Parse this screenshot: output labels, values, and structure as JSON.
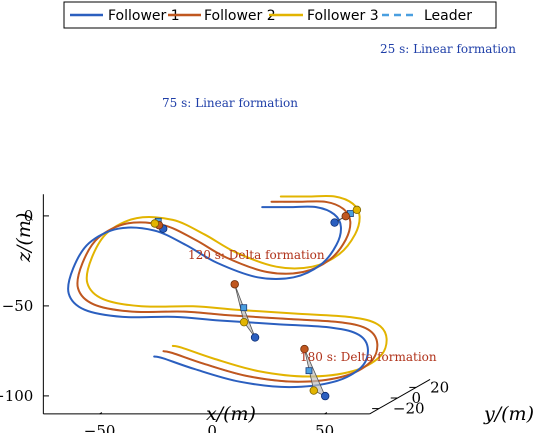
{
  "chart_data": {
    "type": "line",
    "title": "",
    "projection": "3d",
    "axes": {
      "x": {
        "label": "x/(m)",
        "ticks": [
          -50,
          0,
          50
        ]
      },
      "y": {
        "label": "y/(m)",
        "ticks": [
          -20,
          0,
          20
        ]
      },
      "z": {
        "label": "z/(m)",
        "ticks": [
          -100,
          -50,
          0
        ]
      }
    },
    "xlim": [
      -75,
      70
    ],
    "ylim": [
      -30,
      35
    ],
    "zlim": [
      -110,
      12
    ],
    "grid": false,
    "legend": {
      "placement": "top",
      "box": true
    },
    "series": [
      {
        "name": "Follower 1",
        "color": "#2b5fbf",
        "dash": "solid",
        "points": [
          [
            14,
            -10,
            -1
          ],
          [
            26,
            -10,
            -1
          ],
          [
            38,
            -10,
            -1
          ],
          [
            46,
            -10,
            -5
          ],
          [
            49,
            -10,
            -12
          ],
          [
            47,
            -10,
            -22
          ],
          [
            40,
            -10,
            -33
          ],
          [
            28,
            -10,
            -40
          ],
          [
            12,
            -10,
            -40
          ],
          [
            -6,
            -10,
            -32
          ],
          [
            -20,
            -10,
            -22
          ],
          [
            -34,
            -10,
            -14
          ],
          [
            -50,
            -10,
            -13
          ],
          [
            -63,
            -10,
            -21
          ],
          [
            -70,
            -10,
            -35
          ],
          [
            -72,
            -10,
            -49
          ],
          [
            -65,
            -10,
            -58
          ],
          [
            -48,
            -10,
            -62
          ],
          [
            -25,
            -10,
            -62
          ],
          [
            -5,
            -10,
            -64
          ],
          [
            20,
            -10,
            -66
          ],
          [
            45,
            -10,
            -68
          ],
          [
            57,
            -10,
            -72
          ],
          [
            61,
            -10,
            -80
          ],
          [
            58,
            -10,
            -90
          ],
          [
            46,
            -10,
            -98
          ],
          [
            26,
            -10,
            -101
          ],
          [
            4,
            -10,
            -98
          ],
          [
            -16,
            -10,
            -91
          ],
          [
            -30,
            -10,
            -85
          ],
          [
            -34,
            -10,
            -84
          ]
        ]
      },
      {
        "name": "Follower 2",
        "color": "#c0571f",
        "dash": "solid",
        "points": [
          [
            14,
            0,
            -1
          ],
          [
            26,
            0,
            -1
          ],
          [
            38,
            0,
            -1
          ],
          [
            46,
            0,
            -5
          ],
          [
            49,
            0,
            -12
          ],
          [
            47,
            0,
            -22
          ],
          [
            40,
            0,
            -33
          ],
          [
            28,
            0,
            -40
          ],
          [
            12,
            0,
            -40
          ],
          [
            -6,
            0,
            -32
          ],
          [
            -20,
            0,
            -22
          ],
          [
            -34,
            0,
            -14
          ],
          [
            -50,
            0,
            -13
          ],
          [
            -63,
            0,
            -21
          ],
          [
            -70,
            0,
            -35
          ],
          [
            -72,
            0,
            -49
          ],
          [
            -65,
            0,
            -58
          ],
          [
            -48,
            0,
            -62
          ],
          [
            -25,
            0,
            -62
          ],
          [
            -5,
            0,
            -64
          ],
          [
            20,
            0,
            -66
          ],
          [
            45,
            0,
            -68
          ],
          [
            57,
            0,
            -72
          ],
          [
            61,
            0,
            -80
          ],
          [
            58,
            0,
            -90
          ],
          [
            46,
            0,
            -98
          ],
          [
            26,
            0,
            -101
          ],
          [
            4,
            0,
            -98
          ],
          [
            -16,
            0,
            -91
          ],
          [
            -30,
            0,
            -85
          ],
          [
            -34,
            0,
            -84
          ]
        ]
      },
      {
        "name": "Follower 3",
        "color": "#e2b400",
        "dash": "solid",
        "points": [
          [
            14,
            10,
            -1
          ],
          [
            26,
            10,
            -1
          ],
          [
            38,
            10,
            -1
          ],
          [
            46,
            10,
            -5
          ],
          [
            49,
            10,
            -12
          ],
          [
            47,
            10,
            -22
          ],
          [
            40,
            10,
            -33
          ],
          [
            28,
            10,
            -40
          ],
          [
            12,
            10,
            -40
          ],
          [
            -6,
            10,
            -32
          ],
          [
            -20,
            10,
            -22
          ],
          [
            -34,
            10,
            -14
          ],
          [
            -50,
            10,
            -13
          ],
          [
            -63,
            10,
            -21
          ],
          [
            -70,
            10,
            -35
          ],
          [
            -72,
            10,
            -49
          ],
          [
            -65,
            10,
            -58
          ],
          [
            -48,
            10,
            -62
          ],
          [
            -25,
            10,
            -62
          ],
          [
            -5,
            10,
            -64
          ],
          [
            20,
            10,
            -66
          ],
          [
            45,
            10,
            -68
          ],
          [
            57,
            10,
            -72
          ],
          [
            61,
            10,
            -80
          ],
          [
            58,
            10,
            -90
          ],
          [
            46,
            10,
            -98
          ],
          [
            26,
            10,
            -101
          ],
          [
            4,
            10,
            -98
          ],
          [
            -16,
            10,
            -91
          ],
          [
            -30,
            10,
            -85
          ],
          [
            -34,
            10,
            -84
          ]
        ]
      },
      {
        "name": "Leader",
        "color": "#4a9fe0",
        "dash": "dashed",
        "points": [
          [
            14,
            0,
            -1
          ],
          [
            26,
            0,
            -1
          ],
          [
            38,
            0,
            -1
          ],
          [
            46,
            0,
            -5
          ],
          [
            49,
            0,
            -12
          ],
          [
            47,
            0,
            -22
          ],
          [
            40,
            0,
            -33
          ],
          [
            28,
            0,
            -40
          ],
          [
            12,
            0,
            -40
          ],
          [
            -6,
            0,
            -32
          ],
          [
            -20,
            0,
            -22
          ],
          [
            -34,
            0,
            -14
          ],
          [
            -50,
            0,
            -13
          ],
          [
            -63,
            0,
            -21
          ],
          [
            -70,
            0,
            -35
          ],
          [
            -72,
            0,
            -49
          ],
          [
            -65,
            0,
            -58
          ],
          [
            -48,
            0,
            -62
          ],
          [
            -25,
            0,
            -62
          ],
          [
            -5,
            0,
            -64
          ],
          [
            20,
            0,
            -66
          ],
          [
            45,
            0,
            -68
          ],
          [
            57,
            0,
            -72
          ],
          [
            61,
            0,
            -80
          ],
          [
            58,
            0,
            -90
          ],
          [
            46,
            0,
            -98
          ],
          [
            26,
            0,
            -101
          ],
          [
            4,
            0,
            -98
          ],
          [
            -16,
            0,
            -91
          ],
          [
            -30,
            0,
            -85
          ],
          [
            -34,
            0,
            -84
          ]
        ]
      }
    ],
    "formations": [
      {
        "label": "25 s: Linear formation",
        "color": "#1f3fa8",
        "kind": "linear",
        "f1": [
          47,
          -12,
          -9
        ],
        "f2": [
          47,
          0,
          -9
        ],
        "f3": [
          47,
          12,
          -9
        ],
        "leader": [
          47,
          5,
          -9
        ]
      },
      {
        "label": "75 s: Linear formation",
        "color": "#1f3fa8",
        "kind": "linear",
        "f1": [
          -30,
          -10,
          -13
        ],
        "f2": [
          -36,
          0,
          -14
        ],
        "f3": [
          -42,
          10,
          -16
        ],
        "leader": [
          -38,
          4,
          -13
        ]
      },
      {
        "label": "120 s: Delta formation",
        "color": "#b0321a",
        "kind": "delta",
        "f1": [
          10,
          -8,
          -74
        ],
        "f2": [
          -4,
          4,
          -48
        ],
        "f3": [
          -4,
          14,
          -72
        ],
        "leader": [
          0,
          4,
          -61
        ]
      },
      {
        "label": "180 s: Delta formation",
        "color": "#b0321a",
        "kind": "delta",
        "f1": [
          42,
          -10,
          -106
        ],
        "f2": [
          27,
          4,
          -84
        ],
        "f3": [
          27,
          14,
          -110
        ],
        "leader": [
          29,
          4,
          -96
        ]
      }
    ]
  }
}
